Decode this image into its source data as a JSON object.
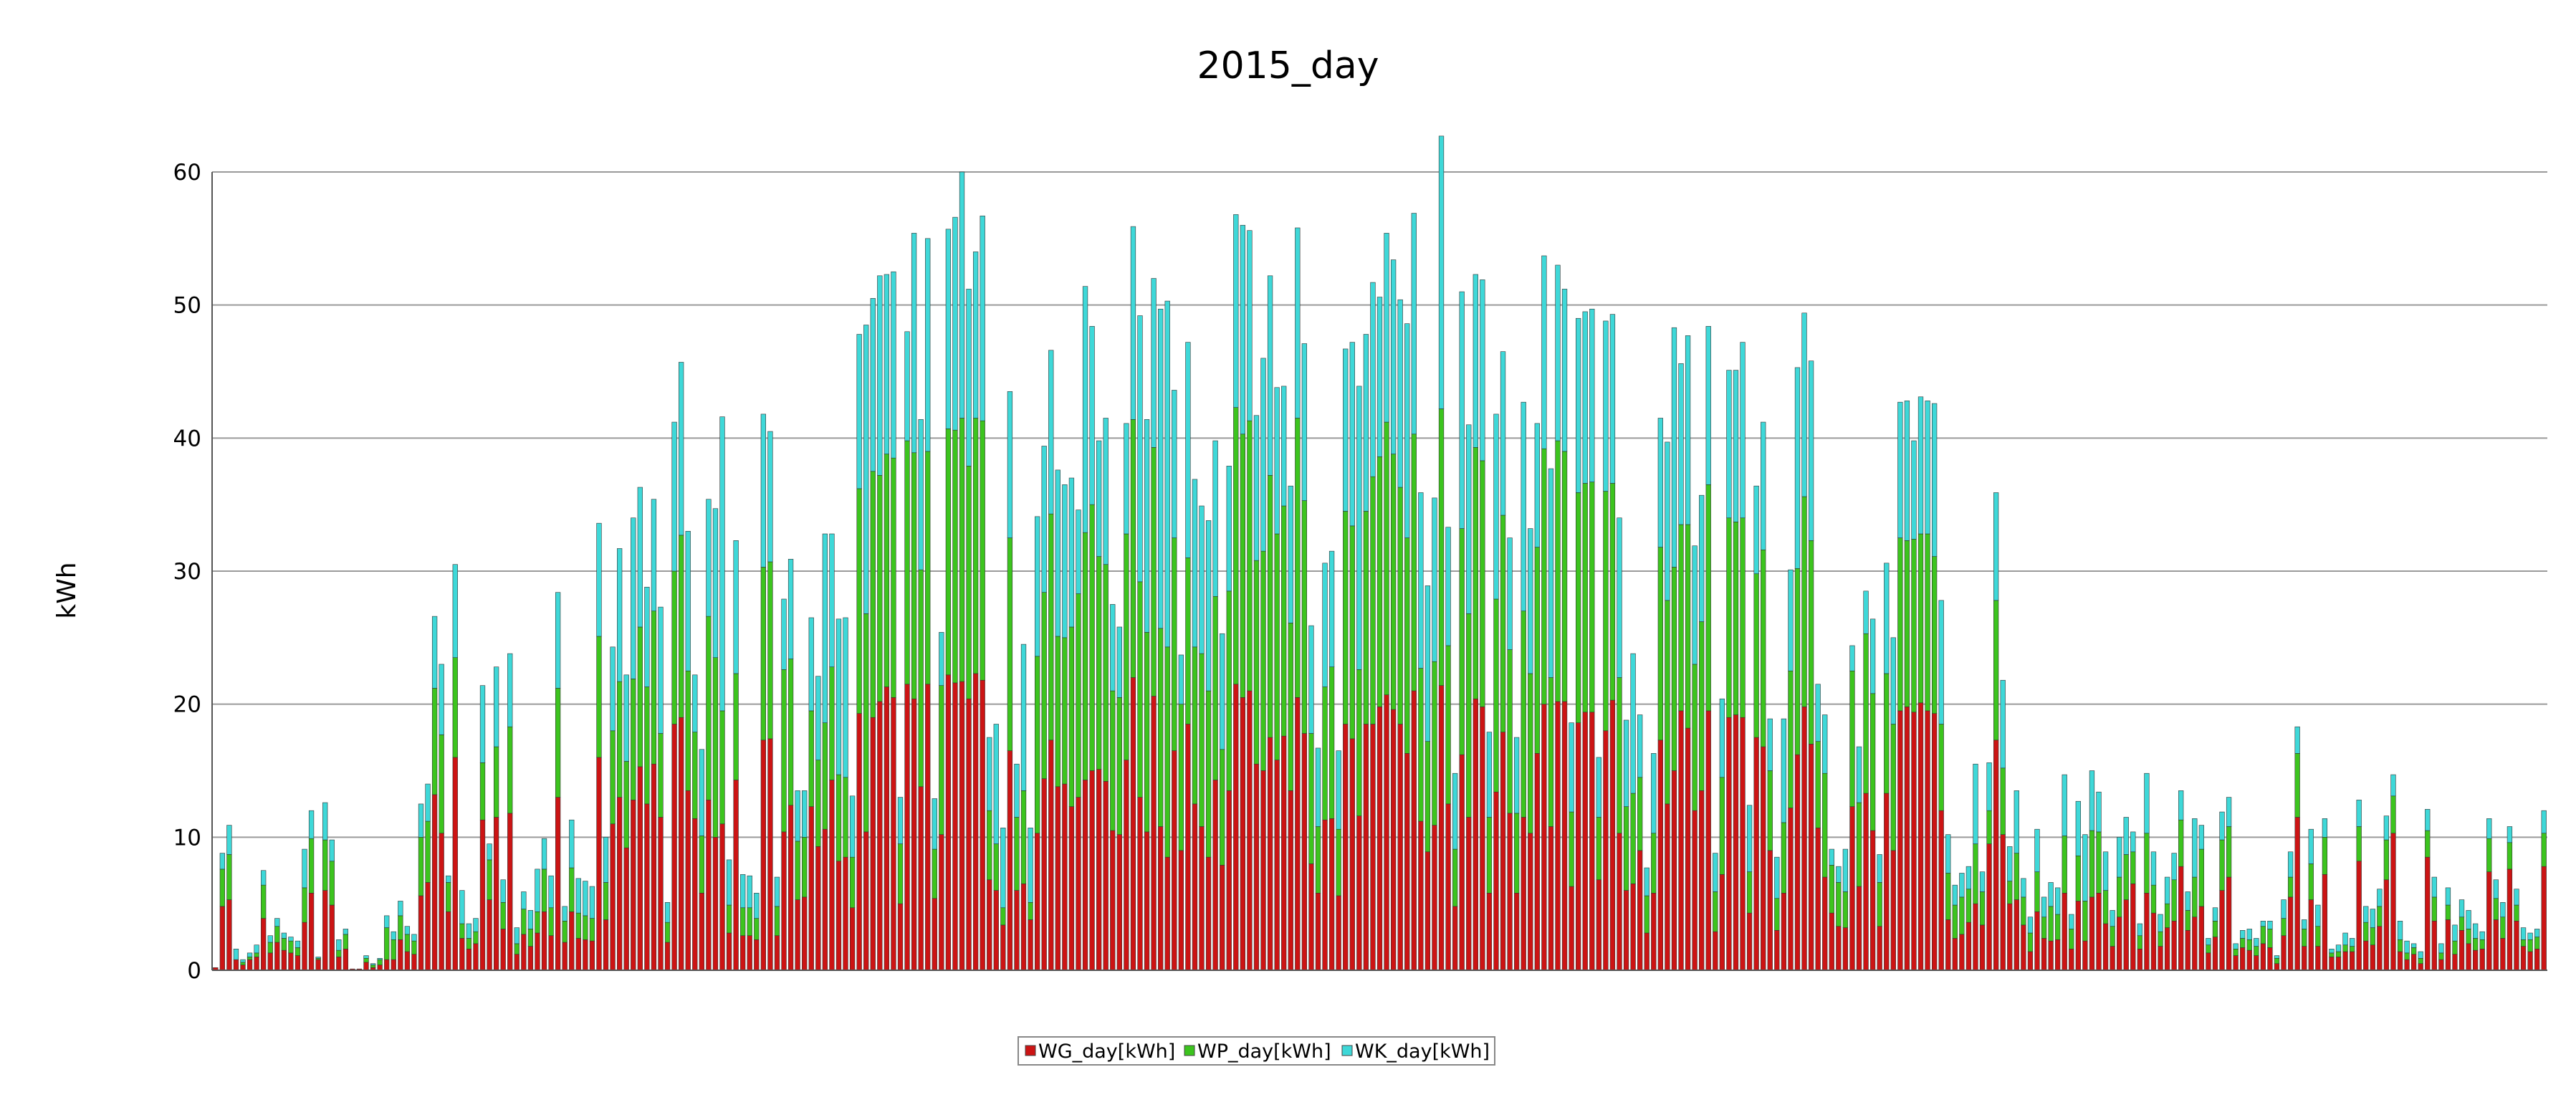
{
  "chart_data": {
    "type": "bar",
    "stacked": true,
    "title": "2015_day",
    "xlabel": "",
    "ylabel": "kWh",
    "ylim": [
      0,
      60
    ],
    "yticks": [
      "0",
      "10",
      "20",
      "30",
      "40",
      "50",
      "60"
    ],
    "grid": true,
    "legend_position": "bottom-center",
    "x": "day of year 2015 (1-365)",
    "series": [
      {
        "name": "WG_day[kWh]",
        "color": "#cc1414",
        "values": [
          0.2,
          4.8,
          5.3,
          0.8,
          0.4,
          0.8,
          1.0,
          3.9,
          1.3,
          2.1,
          1.5,
          1.3,
          1.1,
          3.6,
          5.8,
          0.8,
          6.0,
          4.9,
          1.0,
          1.6,
          0.1,
          0.1,
          0.6,
          0.2,
          0.4,
          0.8,
          0.8,
          2.3,
          1.4,
          1.2,
          5.6,
          6.6,
          13.2,
          10.3,
          4.4,
          16.0,
          2.4,
          1.6,
          2.0,
          11.3,
          5.3,
          11.5,
          3.1,
          11.8,
          1.2,
          2.7,
          1.8,
          2.8,
          4.4,
          2.6,
          13.0,
          2.1,
          4.4,
          2.4,
          2.3,
          2.2,
          16.0,
          3.8,
          11.0,
          13.0,
          9.2,
          12.8,
          15.3,
          12.5,
          15.5,
          11.5,
          2.1,
          18.5,
          19.0,
          13.5,
          11.4,
          5.8,
          12.8,
          10.0,
          11.0,
          2.8,
          14.3,
          2.6,
          2.6,
          2.3,
          17.3,
          17.4,
          2.6,
          10.4,
          12.4,
          5.3,
          5.5,
          12.3,
          9.3,
          10.6,
          14.3,
          8.2,
          8.5,
          4.7,
          19.3,
          10.4,
          19.0,
          20.2,
          21.3,
          20.5,
          5.0,
          21.5,
          20.4,
          13.8,
          21.5,
          5.4,
          10.2,
          22.2,
          21.6,
          21.7,
          20.4,
          22.3,
          21.8,
          6.8,
          6.0,
          3.4,
          16.5,
          6.0,
          6.5,
          3.8,
          10.3,
          14.4,
          17.3,
          13.8,
          14.0,
          12.3,
          13.0,
          14.3,
          15.0,
          15.1,
          14.2,
          10.5,
          10.2,
          15.8,
          22.0,
          13.0,
          10.4,
          20.6,
          10.8,
          8.5,
          16.5,
          9.0,
          18.5,
          12.5,
          10.8,
          8.5,
          14.3,
          7.9,
          13.5,
          21.5,
          20.5,
          21.0,
          15.5,
          15.0,
          17.5,
          15.8,
          17.6,
          13.5,
          20.5,
          17.8,
          8.0,
          5.8,
          11.3,
          11.4,
          5.6,
          18.5,
          17.4,
          11.6,
          18.5,
          18.5,
          19.8,
          20.7,
          19.6,
          18.5,
          16.3,
          21.0,
          11.2,
          8.9,
          10.9,
          21.4,
          12.5,
          4.8,
          16.2,
          11.5,
          20.4,
          19.8,
          5.8,
          13.4,
          17.9,
          11.8,
          5.8,
          11.5,
          10.3,
          16.3,
          20.0,
          10.8,
          20.2,
          20.2,
          6.3,
          18.6,
          19.4,
          19.4,
          6.8,
          18.0,
          20.3,
          10.3,
          6.0,
          6.5,
          9.0,
          2.8,
          5.8,
          17.3,
          12.5,
          15.0,
          19.5,
          18.2,
          12.0,
          13.5,
          19.5,
          2.9,
          7.2,
          19.0,
          19.2,
          19.0,
          4.3,
          17.5,
          16.8,
          9.0,
          3.0,
          5.8,
          12.2,
          16.2,
          19.8,
          17.0,
          10.7,
          7.0,
          4.3,
          3.3,
          3.2,
          12.3,
          6.3,
          13.3,
          10.5,
          3.3,
          13.3,
          9.0,
          19.5,
          19.8,
          19.4,
          20.1,
          19.5,
          19.3,
          12.0,
          3.8,
          2.4,
          2.7,
          3.6,
          5.0,
          3.4,
          9.5,
          17.3,
          10.2,
          5.0,
          5.3,
          3.4,
          1.4,
          4.4,
          2.4,
          2.2,
          2.3,
          5.8,
          1.6,
          5.2,
          2.2,
          5.5,
          5.8,
          3.5,
          1.8,
          4.0,
          5.3,
          6.5,
          1.6,
          5.8,
          4.3,
          1.8,
          3.2,
          3.7,
          7.8,
          3.0,
          4.0,
          4.8,
          1.3,
          2.5,
          6.0,
          7.0,
          1.1,
          1.7,
          1.5,
          1.1,
          2.0,
          1.7,
          0.5,
          2.6,
          5.5,
          11.5,
          1.8,
          5.3,
          1.8,
          7.2,
          1.0,
          1.0,
          1.4,
          1.4,
          8.2,
          2.2,
          1.9,
          3.3,
          6.8,
          10.3,
          1.4,
          0.8,
          1.2,
          0.5,
          8.5,
          3.7,
          0.8,
          3.8,
          1.2,
          3.0,
          2.0,
          1.5,
          1.6,
          7.4,
          3.8,
          2.4,
          7.6,
          3.7,
          1.8,
          1.4,
          1.6,
          7.8
        ]
      },
      {
        "name": "WP_day[kWh]",
        "color": "#3cc41e",
        "values": [
          0.0,
          2.8,
          3.4,
          0.0,
          0.2,
          0.2,
          0.3,
          2.5,
          0.8,
          1.2,
          0.9,
          0.9,
          0.6,
          2.6,
          4.1,
          0.1,
          3.8,
          3.3,
          0.5,
          1.1,
          0.0,
          0.0,
          0.3,
          0.2,
          0.4,
          2.4,
          1.5,
          1.8,
          1.3,
          1.0,
          4.4,
          4.6,
          8.0,
          7.4,
          2.2,
          7.5,
          1.1,
          0.8,
          0.9,
          4.3,
          3.0,
          5.3,
          2.0,
          6.5,
          0.8,
          1.9,
          1.3,
          1.6,
          3.2,
          2.1,
          8.2,
          1.6,
          3.3,
          1.9,
          1.8,
          1.7,
          9.1,
          2.8,
          7.0,
          8.7,
          6.5,
          9.1,
          10.5,
          8.8,
          11.5,
          6.3,
          1.5,
          11.5,
          13.7,
          9.0,
          6.5,
          4.3,
          13.8,
          13.5,
          8.5,
          2.1,
          8.0,
          2.1,
          2.1,
          1.6,
          13.0,
          13.3,
          2.2,
          12.2,
          11.0,
          4.4,
          4.5,
          7.2,
          6.5,
          8.0,
          8.5,
          6.5,
          6.0,
          3.8,
          16.9,
          16.4,
          18.5,
          17.0,
          17.5,
          18.0,
          4.5,
          18.3,
          18.5,
          16.3,
          17.5,
          3.7,
          11.2,
          18.5,
          19.0,
          19.8,
          17.5,
          19.2,
          19.5,
          5.2,
          3.5,
          1.3,
          16.0,
          5.5,
          7.0,
          1.3,
          13.3,
          14.0,
          17.0,
          11.3,
          11.0,
          13.5,
          15.3,
          18.6,
          20.0,
          16.0,
          16.3,
          10.5,
          10.3,
          17.0,
          19.4,
          16.2,
          15.0,
          18.7,
          14.9,
          15.8,
          16.0,
          11.0,
          12.5,
          11.8,
          13.0,
          12.5,
          13.8,
          8.7,
          15.0,
          20.8,
          19.8,
          20.3,
          15.3,
          16.5,
          19.7,
          17.0,
          17.3,
          12.6,
          21.0,
          17.5,
          9.8,
          5.0,
          10.0,
          11.4,
          5.0,
          16.0,
          16.0,
          11.0,
          16.0,
          18.6,
          18.8,
          20.5,
          19.2,
          17.8,
          16.2,
          19.3,
          11.5,
          8.3,
          12.3,
          20.8,
          11.9,
          4.3,
          17.0,
          15.3,
          18.9,
          18.5,
          5.7,
          14.5,
          16.3,
          12.3,
          6.0,
          15.5,
          12.0,
          15.5,
          19.2,
          11.2,
          19.6,
          18.8,
          5.6,
          17.3,
          17.2,
          17.3,
          4.7,
          18.0,
          16.3,
          11.7,
          6.3,
          6.8,
          5.5,
          2.8,
          4.5,
          14.5,
          15.3,
          15.3,
          14.0,
          15.3,
          11.0,
          12.7,
          17.0,
          3.0,
          7.3,
          15.0,
          14.5,
          15.0,
          3.1,
          12.3,
          14.8,
          6.0,
          2.4,
          5.3,
          10.3,
          14.0,
          15.8,
          15.3,
          6.5,
          7.8,
          3.6,
          3.3,
          2.7,
          10.2,
          6.3,
          12.0,
          10.3,
          3.3,
          9.0,
          9.5,
          13.0,
          12.5,
          13.0,
          12.7,
          13.3,
          11.8,
          6.5,
          3.5,
          2.5,
          2.8,
          2.5,
          4.5,
          2.5,
          2.5,
          10.5,
          5.0,
          1.7,
          3.5,
          2.1,
          1.4,
          3.0,
          1.6,
          2.6,
          1.9,
          4.3,
          1.5,
          3.4,
          3.0,
          5.0,
          4.6,
          2.5,
          1.5,
          3.0,
          3.4,
          2.4,
          1.0,
          4.5,
          2.1,
          1.1,
          1.8,
          3.1,
          3.5,
          1.5,
          3.0,
          4.3,
          0.6,
          1.2,
          3.8,
          3.8,
          0.5,
          0.7,
          0.8,
          0.7,
          1.3,
          1.4,
          0.4,
          1.3,
          1.5,
          4.8,
          1.3,
          2.7,
          1.5,
          2.8,
          0.3,
          0.4,
          0.5,
          0.4,
          2.6,
          1.4,
          1.3,
          1.5,
          3.0,
          2.8,
          0.9,
          0.5,
          0.5,
          0.4,
          2.0,
          1.8,
          0.5,
          1.1,
          1.0,
          1.0,
          1.1,
          0.9,
          0.7,
          2.5,
          1.6,
          1.6,
          2.0,
          1.2,
          0.5,
          0.9,
          0.9,
          2.5
        ]
      },
      {
        "name": "WK_day[kWh]",
        "color": "#3ed8d8",
        "values": [
          0.0,
          1.2,
          2.2,
          0.8,
          0.2,
          0.3,
          0.6,
          1.1,
          0.5,
          0.6,
          0.4,
          0.3,
          0.5,
          2.9,
          2.1,
          0.1,
          2.8,
          1.6,
          0.8,
          0.4,
          0.0,
          0.0,
          0.2,
          0.1,
          0.1,
          0.9,
          0.6,
          1.1,
          0.6,
          0.5,
          2.5,
          2.8,
          5.4,
          5.3,
          0.5,
          7.0,
          2.5,
          1.1,
          1.0,
          5.8,
          1.2,
          6.0,
          1.7,
          5.5,
          1.2,
          1.3,
          1.4,
          3.2,
          2.3,
          2.4,
          7.2,
          1.1,
          3.6,
          2.6,
          2.6,
          2.4,
          8.5,
          3.4,
          6.3,
          10.0,
          6.5,
          12.1,
          10.5,
          7.5,
          8.4,
          9.5,
          1.5,
          11.2,
          13.0,
          10.5,
          4.3,
          6.5,
          8.8,
          11.2,
          22.1,
          3.4,
          10.0,
          2.5,
          2.4,
          1.9,
          11.5,
          9.8,
          2.2,
          5.3,
          7.5,
          3.8,
          3.5,
          7.0,
          6.3,
          14.2,
          10.0,
          11.7,
          12.0,
          4.6,
          11.6,
          21.7,
          13.0,
          15.0,
          13.5,
          14.0,
          3.5,
          8.2,
          16.5,
          11.3,
          16.0,
          3.8,
          4.0,
          15.0,
          16.0,
          18.5,
          13.3,
          12.5,
          15.4,
          5.5,
          9.0,
          6.0,
          11.0,
          4.0,
          11.0,
          5.6,
          10.5,
          11.0,
          12.3,
          12.5,
          11.5,
          11.2,
          6.3,
          18.5,
          13.4,
          8.7,
          11.0,
          6.5,
          5.3,
          8.3,
          14.5,
          20.0,
          16.0,
          12.7,
          24.0,
          26.0,
          11.1,
          3.7,
          16.2,
          12.6,
          11.1,
          12.8,
          11.7,
          8.7,
          9.4,
          14.5,
          15.7,
          14.3,
          10.9,
          14.5,
          15.0,
          11.0,
          9.0,
          10.3,
          14.3,
          11.8,
          8.1,
          5.9,
          9.3,
          8.7,
          5.9,
          12.2,
          13.8,
          21.3,
          13.3,
          14.6,
          12.0,
          14.2,
          14.6,
          14.1,
          16.1,
          16.6,
          13.2,
          11.7,
          12.3,
          20.5,
          8.9,
          5.7,
          17.8,
          14.2,
          13.0,
          13.6,
          6.4,
          13.9,
          12.3,
          8.4,
          5.7,
          15.7,
          10.9,
          9.3,
          14.5,
          15.7,
          13.2,
          12.2,
          6.7,
          13.1,
          12.9,
          13.0,
          4.5,
          12.8,
          12.7,
          12.0,
          6.5,
          10.5,
          4.7,
          2.1,
          6.0,
          9.7,
          11.9,
          18.0,
          12.1,
          14.2,
          8.9,
          9.5,
          11.9,
          2.9,
          5.9,
          11.1,
          11.4,
          13.2,
          5.0,
          6.6,
          9.6,
          3.9,
          3.1,
          7.8,
          7.6,
          15.1,
          13.8,
          13.5,
          4.3,
          4.4,
          1.2,
          1.2,
          3.2,
          1.9,
          4.2,
          3.2,
          5.6,
          2.1,
          8.3,
          6.5,
          10.2,
          10.5,
          7.4,
          10.3,
          10.0,
          11.5,
          9.3,
          2.9,
          1.5,
          1.8,
          1.7,
          6.0,
          1.5,
          3.6,
          8.1,
          6.6,
          2.6,
          4.7,
          1.4,
          1.2,
          3.2,
          1.5,
          1.8,
          2.0,
          4.6,
          1.1,
          4.1,
          5.0,
          4.5,
          3.0,
          2.9,
          1.2,
          3.0,
          2.8,
          1.5,
          0.9,
          4.5,
          2.5,
          1.3,
          2.0,
          2.0,
          2.2,
          1.4,
          4.4,
          1.8,
          0.5,
          1.0,
          2.1,
          2.2,
          0.4,
          0.6,
          0.8,
          0.6,
          0.4,
          0.6,
          0.2,
          1.4,
          1.9,
          2.0,
          0.7,
          2.6,
          1.6,
          1.4,
          0.3,
          0.5,
          0.9,
          0.6,
          2.0,
          1.2,
          1.4,
          1.3,
          1.8,
          1.6,
          1.4,
          0.9,
          0.3,
          0.5,
          1.6,
          1.5,
          0.7,
          1.3,
          1.2,
          1.3,
          1.4,
          1.1,
          0.6,
          1.5,
          1.4,
          1.1,
          1.2,
          1.2,
          0.9,
          0.5,
          0.6,
          1.7
        ]
      }
    ]
  }
}
